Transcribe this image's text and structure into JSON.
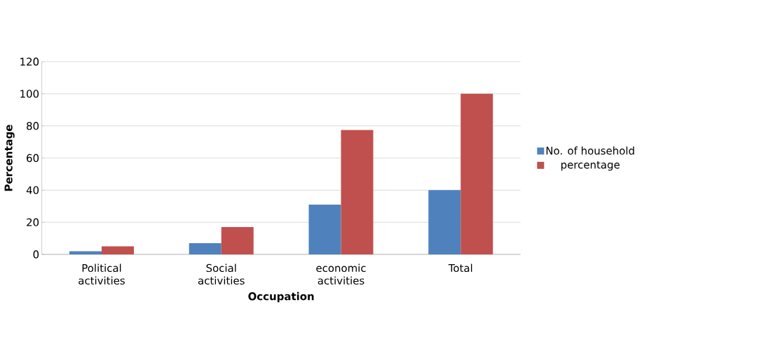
{
  "chart_data": {
    "type": "bar",
    "xlabel": "Occupation",
    "ylabel": "Percentage",
    "categories": [
      "Political activities",
      "Social activities",
      "economic activities",
      "Total"
    ],
    "series": [
      {
        "name": "No. of household",
        "color": "#4f81bd",
        "values": [
          2,
          7,
          31,
          40
        ]
      },
      {
        "name": "percentage",
        "color": "#c0504d",
        "values": [
          5,
          17,
          77.5,
          100
        ]
      }
    ],
    "ylim": [
      0,
      120
    ],
    "yticks": [
      0,
      20,
      40,
      60,
      80,
      100,
      120
    ],
    "grid": "y",
    "legend": "right"
  }
}
